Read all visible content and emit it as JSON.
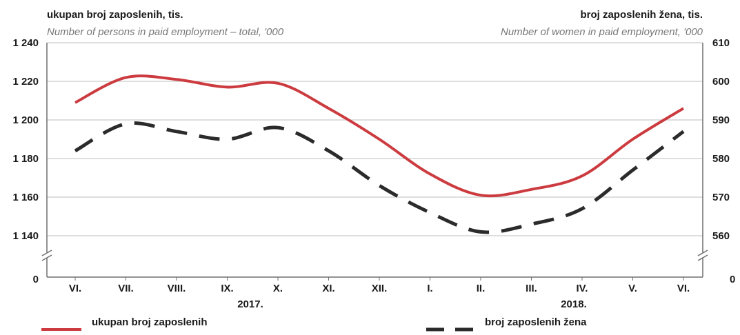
{
  "colors": {
    "total": "#cc3b3f",
    "women": "#2b2b2b",
    "grid": "#bdbdbd",
    "axis": "#6e6e6e"
  },
  "chart_data": {
    "type": "line",
    "left_title": "ukupan broj zaposlenih, tis.",
    "left_subtitle": "Number of persons in paid employment – total, '000",
    "right_title": "broj zaposlenih žena, tis.",
    "right_subtitle": "Number of women in paid employment, '000",
    "categories": [
      "VI.",
      "VII.",
      "VIII.",
      "IX.",
      "X.",
      "XI.",
      "XII.",
      "I.",
      "II.",
      "III.",
      "IV.",
      "V.",
      "VI."
    ],
    "year_labels": [
      {
        "label": "2017.",
        "start": 0,
        "end": 6
      },
      {
        "label": "2018.",
        "start": 7,
        "end": 12
      }
    ],
    "y_left": {
      "ticks": [
        1140,
        1160,
        1180,
        1200,
        1220,
        1240
      ],
      "tick_labels": [
        "1 140",
        "1 160",
        "1 180",
        "1 200",
        "1 220",
        "1 240"
      ],
      "zero_label": "0",
      "range": [
        1140,
        1240
      ],
      "broken_axis": true
    },
    "y_right": {
      "ticks": [
        560,
        570,
        580,
        590,
        600,
        610
      ],
      "tick_labels": [
        "560",
        "570",
        "580",
        "590",
        "600",
        "610"
      ],
      "zero_label": "0",
      "range": [
        560,
        610
      ],
      "broken_axis": true
    },
    "grid": true,
    "legend_position": "bottom",
    "series": [
      {
        "name": "ukupan broj zaposlenih",
        "axis": "left",
        "style": "solid",
        "values": [
          1209,
          1222,
          1221,
          1217,
          1219,
          1206,
          1190,
          1172,
          1161,
          1164,
          1171,
          1190,
          1206
        ]
      },
      {
        "name": "broj zaposlenih žena",
        "axis": "right",
        "style": "dashed",
        "values": [
          582,
          589,
          587,
          585,
          588,
          582,
          573,
          566,
          561,
          563,
          567,
          577,
          587
        ]
      }
    ]
  }
}
